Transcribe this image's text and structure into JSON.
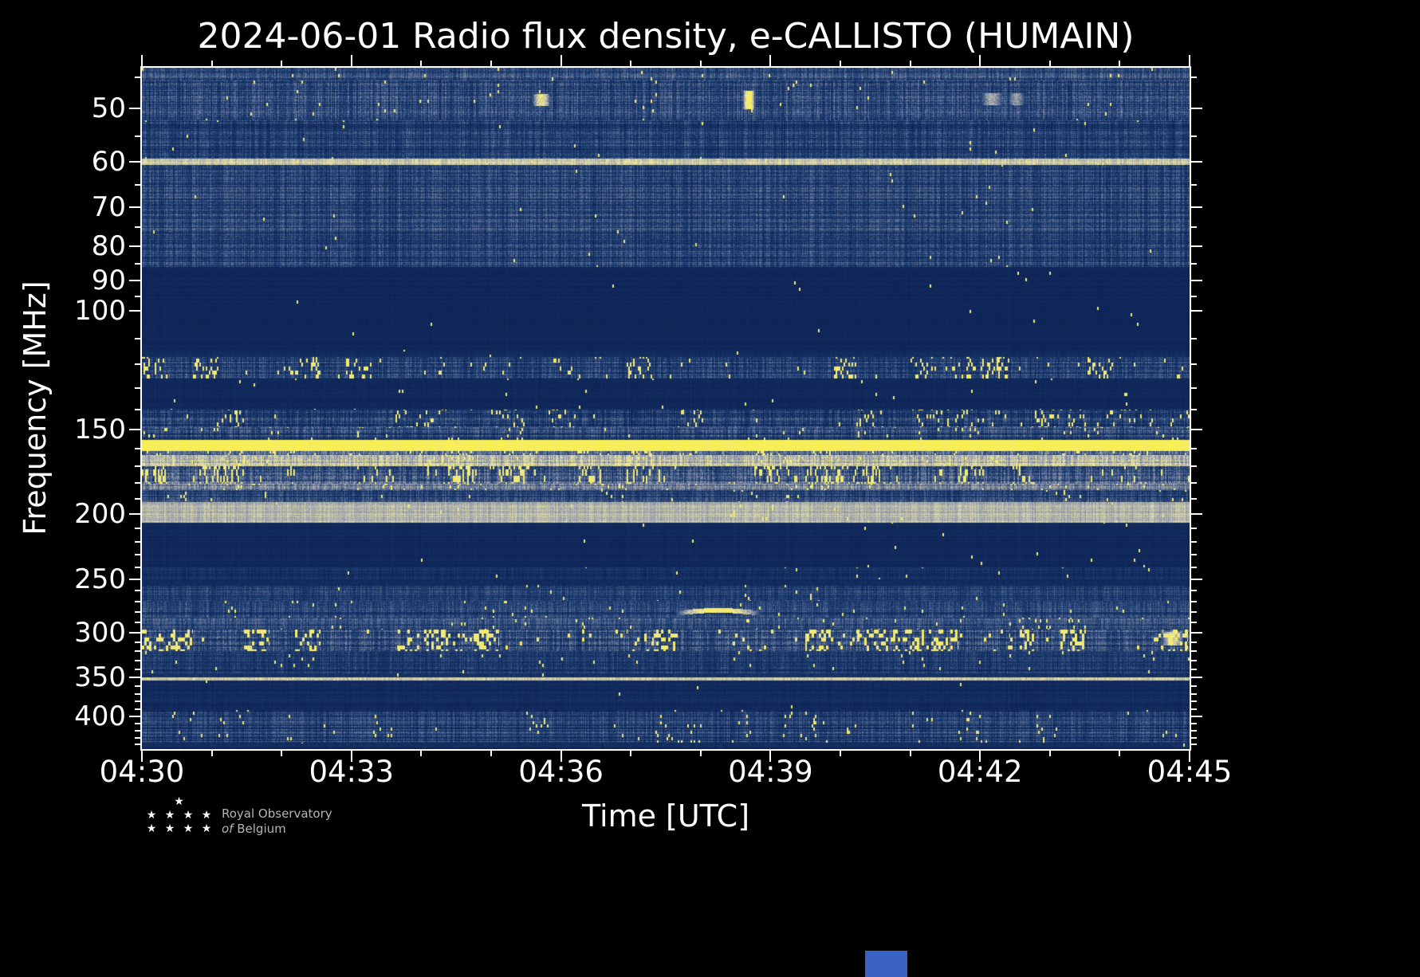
{
  "title": "2024-06-01 Radio flux density, e-CALLISTO (HUMAIN)",
  "axes": {
    "x_label": "Time [UTC]",
    "y_label": "Frequency [MHz]"
  },
  "footer": {
    "star_rows": [
      "★",
      "★ ★ ★ ★",
      "★ ★ ★ ★"
    ],
    "line1": "Royal Observatory",
    "line2_italic": "of",
    "line2_rest": "Belgium"
  },
  "colors": {
    "background": "#000000",
    "axis": "#ffffff",
    "text": "#ffffff",
    "footer_text": "#b5b5b5",
    "blue_mark": "#3a62c4"
  },
  "chart_data": {
    "type": "heatmap",
    "title": "2024-06-01 Radio flux density, e-CALLISTO (HUMAIN)",
    "xlabel": "Time [UTC]",
    "ylabel": "Frequency [MHz]",
    "date": "2024-06-01",
    "station": "e-CALLISTO (HUMAIN)",
    "x_range": [
      "04:30",
      "04:45"
    ],
    "x_minutes_total": 15,
    "x_major_every": 3,
    "x_tick_labels": [
      "04:30",
      "04:33",
      "04:36",
      "04:39",
      "04:42",
      "04:45"
    ],
    "y_scale": "log",
    "y_range_mhz": [
      43.5,
      447
    ],
    "y_tick_values": [
      50,
      60,
      70,
      80,
      90,
      100,
      150,
      200,
      250,
      300,
      350,
      400
    ],
    "y_minor_ticks": [
      45,
      55,
      65,
      75,
      85,
      95,
      110,
      120,
      130,
      140,
      160,
      170,
      180,
      190,
      210,
      220,
      230,
      240,
      260,
      270,
      280,
      290,
      310,
      320,
      330,
      340,
      360,
      370,
      380,
      390,
      410,
      420,
      430,
      440
    ],
    "colormap": [
      {
        "p": 0.0,
        "c": "#071a4a"
      },
      {
        "p": 0.3,
        "c": "#1f3f73"
      },
      {
        "p": 0.55,
        "c": "#8b93a9"
      },
      {
        "p": 0.75,
        "c": "#e9e3a9"
      },
      {
        "p": 1.0,
        "c": "#fdf23c"
      }
    ],
    "background_level": 0.1,
    "bands": [
      {
        "f0": 43.5,
        "f1": 45.5,
        "base": 0.34,
        "amp": 0.14,
        "row": 0.08,
        "spk": 0.004,
        "desc": "top edge noise"
      },
      {
        "f0": 45.5,
        "f1": 52,
        "base": 0.3,
        "amp": 0.17,
        "row": 0.1,
        "spk": 0.004,
        "desc": "broadband noise 46-52 MHz"
      },
      {
        "f0": 52,
        "f1": 59.3,
        "base": 0.26,
        "amp": 0.14,
        "row": 0.11,
        "spk": 0.002,
        "desc": "noise 52-59 MHz"
      },
      {
        "f0": 59.3,
        "f1": 60.7,
        "base": 0.68,
        "amp": 0.1,
        "row": 0.04,
        "spk": 0.004,
        "desc": "narrowband carrier at 60 MHz"
      },
      {
        "f0": 60.7,
        "f1": 86,
        "base": 0.28,
        "amp": 0.15,
        "row": 0.11,
        "spk": 0.002,
        "desc": "broadband noise 61-86 MHz"
      },
      {
        "f0": 86,
        "f1": 114,
        "base": 0.11,
        "amp": 0.02,
        "row": 0.02,
        "spk": 0.0005,
        "desc": "quiet FM band"
      },
      {
        "f0": 114,
        "f1": 117,
        "base": 0.13,
        "amp": 0.04,
        "row": 0.03,
        "spk": 0.001,
        "desc": "weak noise"
      },
      {
        "f0": 117,
        "f1": 126,
        "base": 0.26,
        "amp": 0.15,
        "row": 0.1,
        "spk": 0.055,
        "sh": 5,
        "desc": "aeronautical band with yellow bursts"
      },
      {
        "f0": 126,
        "f1": 140,
        "base": 0.12,
        "amp": 0.03,
        "row": 0.03,
        "spk": 0.003,
        "desc": "quiet band"
      },
      {
        "f0": 140,
        "f1": 148.5,
        "base": 0.26,
        "amp": 0.16,
        "row": 0.11,
        "spk": 0.035,
        "sh": 5,
        "desc": "noise with bursts 140-148 MHz"
      },
      {
        "f0": 148.5,
        "f1": 155.5,
        "base": 0.29,
        "amp": 0.15,
        "row": 0.1,
        "spk": 0.015,
        "desc": "noise 149-155 MHz"
      },
      {
        "f0": 155.5,
        "f1": 161.5,
        "base": 0.93,
        "amp": 0.05,
        "row": 0.03,
        "spk": 0.0,
        "desc": "strong continuous RFI band ~158 MHz"
      },
      {
        "f0": 161.5,
        "f1": 163.5,
        "base": 0.42,
        "amp": 0.18,
        "row": 0.09,
        "spk": 0.05,
        "desc": "gap with dashes"
      },
      {
        "f0": 163.5,
        "f1": 170,
        "base": 0.66,
        "amp": 0.16,
        "row": 0.07,
        "spk": 0.04,
        "desc": "pale mottled RFI band ~165 MHz"
      },
      {
        "f0": 170,
        "f1": 180.5,
        "base": 0.36,
        "amp": 0.19,
        "row": 0.11,
        "spk": 0.085,
        "sh": 8,
        "desc": "noise with vertical yellow dashes"
      },
      {
        "f0": 180.5,
        "f1": 184.5,
        "base": 0.48,
        "amp": 0.15,
        "row": 0.08,
        "spk": 0.03,
        "desc": "pale band ~182 MHz"
      },
      {
        "f0": 184.5,
        "f1": 192,
        "base": 0.29,
        "amp": 0.14,
        "row": 0.11,
        "spk": 0.01,
        "desc": "noise 185-192 MHz"
      },
      {
        "f0": 192,
        "f1": 206,
        "base": 0.64,
        "amp": 0.08,
        "row": 0.05,
        "spk": 0.004,
        "desc": "pale continuous band ~200 MHz"
      },
      {
        "f0": 206,
        "f1": 240,
        "base": 0.12,
        "amp": 0.03,
        "row": 0.03,
        "spk": 0.001,
        "desc": "quiet 206-240 MHz"
      },
      {
        "f0": 240,
        "f1": 250.5,
        "base": 0.21,
        "amp": 0.09,
        "row": 0.08,
        "spk": 0.003,
        "desc": "faint noise ~245 MHz"
      },
      {
        "f0": 250.5,
        "f1": 255,
        "base": 0.14,
        "amp": 0.04,
        "row": 0.03,
        "spk": 0.001,
        "desc": "quiet gap"
      },
      {
        "f0": 255,
        "f1": 269,
        "base": 0.26,
        "amp": 0.12,
        "row": 0.1,
        "spk": 0.004,
        "desc": "noise 255-269 MHz"
      },
      {
        "f0": 269,
        "f1": 285,
        "base": 0.27,
        "amp": 0.13,
        "row": 0.09,
        "spk": 0.006,
        "desc": "noise 269-285 MHz"
      },
      {
        "f0": 285,
        "f1": 297,
        "base": 0.33,
        "amp": 0.13,
        "row": 0.08,
        "spk": 0.018,
        "desc": "pale noise 285-297 MHz"
      },
      {
        "f0": 297,
        "f1": 320,
        "base": 0.31,
        "amp": 0.17,
        "row": 0.12,
        "spk": 0.1,
        "sw": 3,
        "sh": 5,
        "desc": "speckled RFI band ~300 MHz"
      },
      {
        "f0": 320,
        "f1": 345,
        "base": 0.24,
        "amp": 0.12,
        "row": 0.1,
        "spk": 0.007,
        "desc": "noise 320-345 MHz"
      },
      {
        "f0": 345,
        "f1": 349.5,
        "base": 0.17,
        "amp": 0.07,
        "row": 0.05,
        "spk": 0.002,
        "desc": "weak noise"
      },
      {
        "f0": 349.5,
        "f1": 353.5,
        "base": 0.66,
        "amp": 0.08,
        "row": 0.04,
        "spk": 0.003,
        "desc": "narrow carrier line ~351 MHz"
      },
      {
        "f0": 353.5,
        "f1": 391,
        "base": 0.13,
        "amp": 0.04,
        "row": 0.04,
        "spk": 0.001,
        "desc": "quiet 354-391 MHz"
      },
      {
        "f0": 391,
        "f1": 437,
        "base": 0.26,
        "amp": 0.13,
        "row": 0.13,
        "spk": 0.012,
        "desc": "bottom noise band 391-437 MHz"
      },
      {
        "f0": 437,
        "f1": 447,
        "base": 0.15,
        "amp": 0.05,
        "row": 0.04,
        "spk": 0.001,
        "desc": "bottom edge"
      }
    ],
    "features": [
      {
        "t0": 0.372,
        "t1": 0.39,
        "f0": 47.6,
        "f1": 49.4,
        "level": 0.8,
        "arc": 0,
        "desc": "short bright burst near 49 MHz ~04:35.6"
      },
      {
        "t0": 0.573,
        "t1": 0.585,
        "f0": 47.2,
        "f1": 49.9,
        "level": 0.95,
        "arc": 0,
        "desc": "bright vertical dash near 48 MHz ~04:38.6"
      },
      {
        "t0": 0.8,
        "t1": 0.822,
        "f0": 47.5,
        "f1": 49.3,
        "level": 0.62,
        "arc": 0,
        "desc": "faint burst ~04:42.0"
      },
      {
        "t0": 0.826,
        "t1": 0.843,
        "f0": 47.5,
        "f1": 49.3,
        "level": 0.58,
        "arc": 0,
        "desc": "faint burst ~04:42.4"
      },
      {
        "t0": 0.507,
        "t1": 0.592,
        "f0": 279.5,
        "f1": 282.5,
        "level": 0.92,
        "arc": 4,
        "desc": "drifting narrowband burst ~281 MHz around 04:38"
      },
      {
        "t0": 0.972,
        "t1": 0.995,
        "f0": 300,
        "f1": 312,
        "level": 0.72,
        "arc": 0,
        "desc": "burst cluster near 300 MHz at right edge"
      }
    ]
  }
}
